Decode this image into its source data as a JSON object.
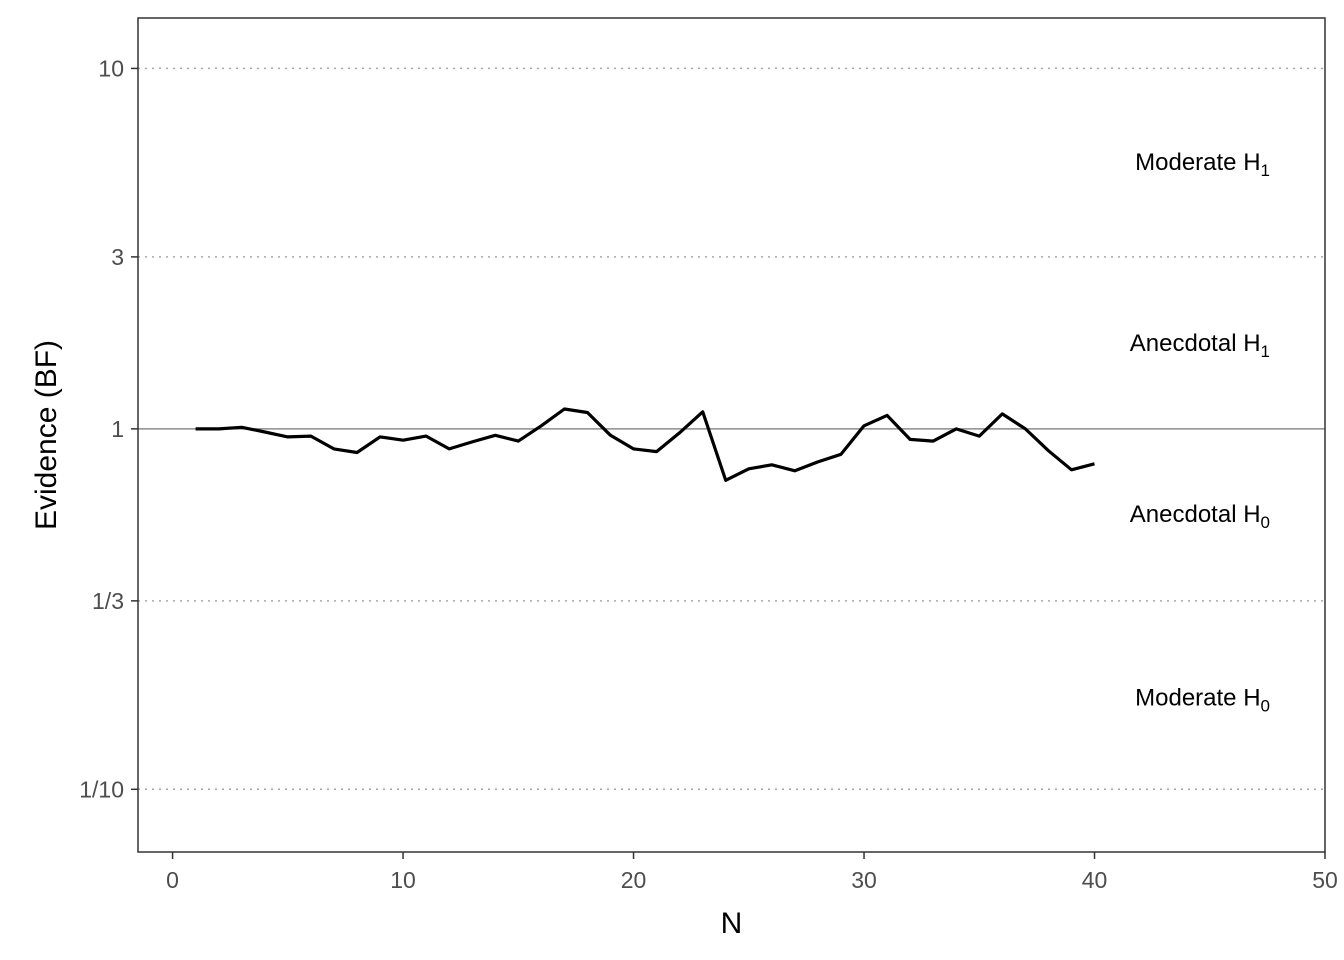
{
  "chart_data": {
    "type": "line",
    "xlabel": "N",
    "ylabel": "Evidence (BF)",
    "xlim": [
      -1.5,
      50
    ],
    "ylim": [
      0.067,
      13.8
    ],
    "y_scale": "log",
    "x_ticks": [
      {
        "value": 0,
        "label": "0"
      },
      {
        "value": 10,
        "label": "10"
      },
      {
        "value": 20,
        "label": "20"
      },
      {
        "value": 30,
        "label": "30"
      },
      {
        "value": 40,
        "label": "40"
      },
      {
        "value": 50,
        "label": "50"
      }
    ],
    "y_ticks": [
      {
        "value": 10,
        "label": "10"
      },
      {
        "value": 3,
        "label": "3"
      },
      {
        "value": 1,
        "label": "1"
      },
      {
        "value": 0.3333,
        "label": "1/3"
      },
      {
        "value": 0.1,
        "label": "1/10"
      }
    ],
    "dotted_gridlines_at": [
      10,
      3,
      0.3333,
      0.1
    ],
    "reference_line_at": 1,
    "region_labels": [
      {
        "text": "Moderate H",
        "sub": "1",
        "y": 5.5
      },
      {
        "text": "Anecdotal H",
        "sub": "1",
        "y": 1.73
      },
      {
        "text": "Anecdotal H",
        "sub": "0",
        "y": 0.58
      },
      {
        "text": "Moderate H",
        "sub": "0",
        "y": 0.18
      }
    ],
    "series": [
      {
        "x": [
          1,
          2,
          3,
          4,
          5,
          6,
          7,
          8,
          9,
          10,
          11,
          12,
          13,
          14,
          15,
          16,
          17,
          18,
          19,
          20,
          21,
          22,
          23,
          24,
          25,
          26,
          27,
          28,
          29,
          30,
          31,
          32,
          33,
          34,
          35,
          36,
          37,
          38,
          39,
          40
        ],
        "values": [
          1.0,
          1.0,
          1.01,
          0.98,
          0.95,
          0.955,
          0.88,
          0.86,
          0.95,
          0.93,
          0.955,
          0.88,
          0.92,
          0.96,
          0.925,
          1.02,
          1.135,
          1.11,
          0.96,
          0.88,
          0.865,
          0.975,
          1.115,
          0.72,
          0.775,
          0.795,
          0.765,
          0.81,
          0.85,
          1.02,
          1.09,
          0.935,
          0.925,
          1.0,
          0.955,
          1.1,
          1.0,
          0.87,
          0.77,
          0.8
        ]
      }
    ],
    "colors": {
      "line": "#000000",
      "reference": "#8c8c8c",
      "grid": "#a6a6a6",
      "panel_border": "#333333"
    }
  }
}
